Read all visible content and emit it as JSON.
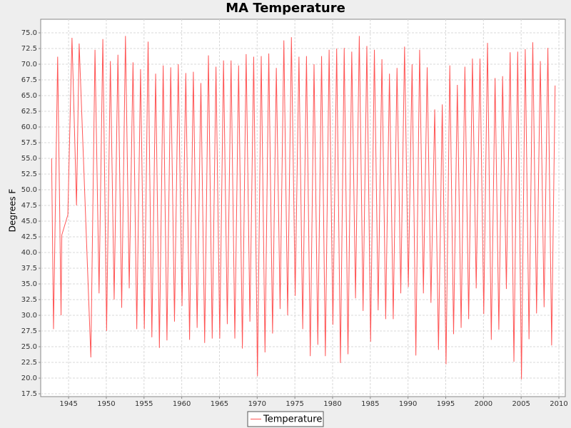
{
  "chart_data": {
    "type": "line",
    "title": "MA Temperature",
    "y_label": "Degrees F",
    "x": [
      1942.75,
      1943.0,
      1943.55,
      1944.0,
      1944.1,
      1944.9,
      1945.45,
      1946.05,
      1946.4,
      1947.95,
      1948.5,
      1949.04,
      1949.54,
      1950.04,
      1950.54,
      1951.04,
      1951.54,
      1952.04,
      1952.54,
      1953.04,
      1953.54,
      1954.04,
      1954.54,
      1955.04,
      1955.54,
      1956.04,
      1956.54,
      1957.04,
      1957.54,
      1958.04,
      1958.54,
      1959.04,
      1959.54,
      1960.04,
      1960.54,
      1961.04,
      1961.54,
      1962.04,
      1962.54,
      1963.04,
      1963.54,
      1964.04,
      1964.54,
      1965.04,
      1965.54,
      1966.04,
      1966.54,
      1967.04,
      1967.54,
      1968.04,
      1968.54,
      1969.04,
      1969.54,
      1970.04,
      1970.54,
      1971.04,
      1971.54,
      1972.04,
      1972.54,
      1973.04,
      1973.54,
      1974.04,
      1974.54,
      1975.04,
      1975.54,
      1976.04,
      1976.54,
      1977.04,
      1977.54,
      1978.04,
      1978.54,
      1979.04,
      1979.54,
      1980.04,
      1980.54,
      1981.04,
      1981.54,
      1982.04,
      1982.54,
      1983.04,
      1983.54,
      1984.04,
      1984.54,
      1985.04,
      1985.54,
      1986.04,
      1986.54,
      1987.04,
      1987.54,
      1988.04,
      1988.54,
      1989.04,
      1989.54,
      1990.04,
      1990.54,
      1991.04,
      1991.54,
      1992.04,
      1992.54,
      1993.04,
      1993.54,
      1994.04,
      1994.54,
      1995.04,
      1995.54,
      1996.04,
      1996.54,
      1997.04,
      1997.54,
      1998.04,
      1998.54,
      1999.04,
      1999.54,
      2000.04,
      2000.54,
      2001.04,
      2001.54,
      2002.04,
      2002.54,
      2003.04,
      2003.54,
      2004.04,
      2004.54,
      2005.04,
      2005.54,
      2006.04,
      2006.54,
      2007.04,
      2007.54,
      2008.04,
      2008.54,
      2009.04,
      2009.5
    ],
    "series": [
      {
        "name": "Temperature",
        "color": "#ff5555",
        "values": [
          55,
          27.8,
          71.2,
          30,
          42.8,
          46,
          74.2,
          47.5,
          73.3,
          23.3,
          72.3,
          33.5,
          74.0,
          27.5,
          70.5,
          32.5,
          71.5,
          31.2,
          74.5,
          34.3,
          70.3,
          27.8,
          69.2,
          27.8,
          73.6,
          26.5,
          68.5,
          24.8,
          69.8,
          26.0,
          69.5,
          29.0,
          70.0,
          31.5,
          68.6,
          26.1,
          68.8,
          28.0,
          67.0,
          25.6,
          71.4,
          26.3,
          69.6,
          26.3,
          70.6,
          28.6,
          70.6,
          26.3,
          69.8,
          24.7,
          71.6,
          29.0,
          71.2,
          20.3,
          71.3,
          24.1,
          71.7,
          27.1,
          69.4,
          31.0,
          73.8,
          30.0,
          74.3,
          33.1,
          71.2,
          27.8,
          71.3,
          23.5,
          70.0,
          25.3,
          71.3,
          23.5,
          72.3,
          28.5,
          72.5,
          22.4,
          72.6,
          23.8,
          72.0,
          32.7,
          74.5,
          30.7,
          72.9,
          25.8,
          72.3,
          30.8,
          70.8,
          29.4,
          68.5,
          29.4,
          69.4,
          33.5,
          72.8,
          34.5,
          70.0,
          23.6,
          72.3,
          33.5,
          69.5,
          32.0,
          62.8,
          24.5,
          63.6,
          22.2,
          69.8,
          27.0,
          66.7,
          28.0,
          69.6,
          29.4,
          70.9,
          34.3,
          70.9,
          30.2,
          73.4,
          26.1,
          67.8,
          27.7,
          68.1,
          34.2,
          71.9,
          22.6,
          72.0,
          19.8,
          72.4,
          26.2,
          73.5,
          30.3,
          70.5,
          31.3,
          72.6,
          25.2,
          66.6
        ]
      }
    ],
    "xlim": [
      1941.3,
      2010.85
    ],
    "ylim": [
      17.05,
      77.16
    ],
    "xticks": [
      1945,
      1950,
      1955,
      1960,
      1965,
      1970,
      1975,
      1980,
      1985,
      1990,
      1995,
      2000,
      2005,
      2010
    ],
    "yticks": [
      17.5,
      {
        "value": 20,
        "label": "20.0"
      },
      22.5,
      {
        "value": 25,
        "label": "25.0"
      },
      27.5,
      {
        "value": 30,
        "label": "30.0"
      },
      32.5,
      {
        "value": 35,
        "label": "35.0"
      },
      37.5,
      {
        "value": 40,
        "label": "40.0"
      },
      42.5,
      {
        "value": 45,
        "label": "45.0"
      },
      47.5,
      {
        "value": 50,
        "label": "50.0"
      },
      52.5,
      {
        "value": 55,
        "label": "55.0"
      },
      57.5,
      {
        "value": 60,
        "label": "60.0"
      },
      62.5,
      {
        "value": 65,
        "label": "65.0"
      },
      67.5,
      {
        "value": 70,
        "label": "70.0"
      },
      72.5,
      {
        "value": 75,
        "label": "75.0"
      }
    ],
    "grid": true,
    "legend": "bottom"
  }
}
